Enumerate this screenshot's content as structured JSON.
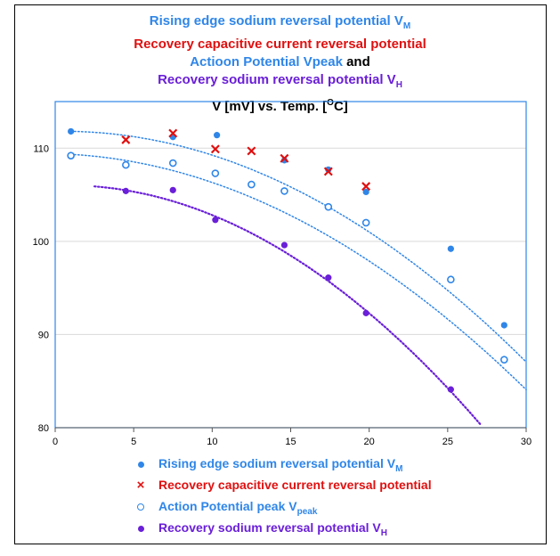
{
  "titles": {
    "line1": "Rising edge sodium reversal potential V",
    "line1_sub": "M",
    "line2": "Recovery capacitive current reversal potential",
    "line3_main": "Actioon Potential Vpeak",
    "line3_and": " and",
    "line4": "Recovery sodium reversal potential V",
    "line4_sub": "H",
    "line5": "V [mV]  vs. Temp. [",
    "line5_sup": "O",
    "line5_end": "C]"
  },
  "legend": {
    "item1": "Rising edge sodium reversal potential  V",
    "item1_sub": "M",
    "item2": "Recovery capacitive current reversal potential",
    "item3": "Action Potential peak  V",
    "item3_sub": "peak",
    "item4": "Recovery sodium reversal potential V",
    "item4_sub": "H"
  },
  "colors": {
    "blue": "#2f86e8",
    "red": "#e01010",
    "purple": "#6a1fd8",
    "grid": "#d9d9d9"
  },
  "chart_data": {
    "type": "scatter",
    "xlim": [
      0,
      30
    ],
    "ylim": [
      80,
      115
    ],
    "xticks": [
      0,
      5,
      10,
      15,
      20,
      25,
      30
    ],
    "yticks": [
      80,
      90,
      100,
      110
    ],
    "grid": true,
    "series": [
      {
        "name": "Rising edge sodium reversal potential V_M",
        "marker": "filled-circle",
        "color": "#2f86e8",
        "x": [
          1.0,
          7.5,
          10.3,
          14.6,
          17.4,
          19.8,
          25.2,
          28.6
        ],
        "y": [
          111.8,
          111.2,
          111.4,
          108.7,
          107.7,
          105.3,
          99.2,
          91.0
        ],
        "trend": {
          "x_start": 1.0,
          "x_end": 30.0,
          "coef": [
            111.8,
            0.03,
            -0.0285
          ]
        }
      },
      {
        "name": "Recovery capacitive current reversal potential",
        "marker": "x",
        "color": "#e01010",
        "x": [
          4.5,
          7.5,
          10.2,
          12.5,
          14.6,
          17.4,
          19.8
        ],
        "y": [
          110.9,
          111.6,
          109.9,
          109.7,
          108.9,
          107.5,
          105.9
        ]
      },
      {
        "name": "Action Potential peak V_peak",
        "marker": "open-circle",
        "color": "#2f86e8",
        "x": [
          1.0,
          4.5,
          7.5,
          10.2,
          12.5,
          14.6,
          17.4,
          19.8,
          25.2,
          28.6
        ],
        "y": [
          109.2,
          108.2,
          108.4,
          107.3,
          106.1,
          105.4,
          103.7,
          102.0,
          95.9,
          87.3
        ],
        "trend": {
          "x_start": 1.0,
          "x_end": 30.0,
          "coef": [
            109.4,
            -0.04,
            -0.0268
          ]
        }
      },
      {
        "name": "Recovery sodium reversal potential V_H",
        "marker": "filled-circle",
        "color": "#6a1fd8",
        "x": [
          4.5,
          7.5,
          10.2,
          14.6,
          17.4,
          19.8,
          25.2
        ],
        "y": [
          105.4,
          105.5,
          102.3,
          99.6,
          96.1,
          92.3,
          84.1
        ],
        "trend": {
          "x_start": 2.5,
          "x_end": 27.2,
          "coef": [
            106.0,
            0.05,
            -0.0368
          ]
        }
      }
    ]
  }
}
